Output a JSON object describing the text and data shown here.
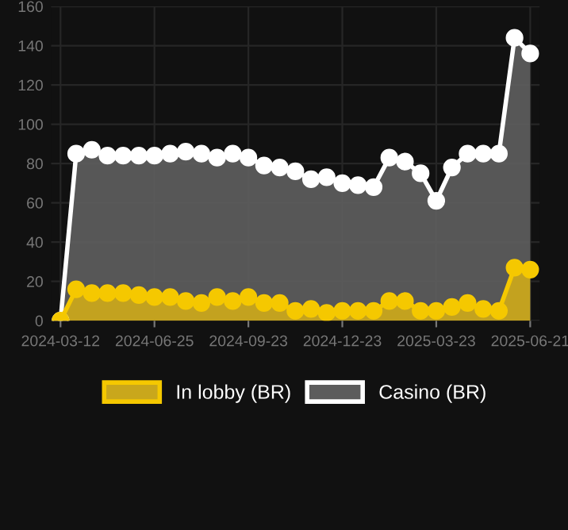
{
  "chart_data": {
    "type": "area",
    "categories": [
      "2024-03-12",
      null,
      null,
      null,
      null,
      null,
      "2024-06-25",
      null,
      null,
      null,
      null,
      null,
      "2024-09-23",
      null,
      null,
      null,
      null,
      null,
      "2024-12-23",
      null,
      null,
      null,
      null,
      null,
      "2025-03-23",
      null,
      null,
      null,
      null,
      null,
      "2025-06-21"
    ],
    "series": [
      {
        "name": "In lobby (BR)",
        "color": "#f5c800",
        "values": [
          0,
          16,
          14,
          14,
          14,
          13,
          12,
          12,
          10,
          9,
          12,
          10,
          12,
          9,
          9,
          5,
          6,
          4,
          5,
          5,
          5,
          10,
          10,
          5,
          5,
          7,
          9,
          6,
          5,
          27,
          26
        ]
      },
      {
        "name": "Casino (BR)",
        "color": "#ffffff",
        "values": [
          0,
          85,
          87,
          84,
          84,
          84,
          84,
          85,
          86,
          85,
          83,
          85,
          83,
          79,
          78,
          76,
          72,
          73,
          70,
          69,
          68,
          83,
          81,
          75,
          61,
          78,
          85,
          85,
          85,
          144,
          136
        ]
      }
    ],
    "ylim": [
      0,
      160
    ],
    "yticks": [
      0,
      20,
      40,
      60,
      80,
      100,
      120,
      140,
      160
    ],
    "grid": true,
    "legend": "bottom",
    "marker": "circle",
    "line_style": "solid"
  }
}
